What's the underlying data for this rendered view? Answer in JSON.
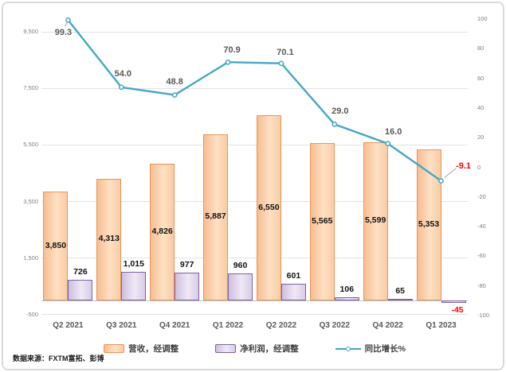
{
  "source_note": "数据来源：FXTM富拓、彭博",
  "colors": {
    "revenue_fill": "#FBD2AB",
    "revenue_border": "#E8945A",
    "profit_fill": "#DED3EB",
    "profit_border": "#7E62A1",
    "line": "#43A7C7",
    "negative_label": "#FF0000",
    "axis_text": "#808080",
    "label_text": "#595959",
    "gridline": "#E2E2E2"
  },
  "chart_data": {
    "type": "bar",
    "subtype": "combo-bar-line-dual-axis",
    "categories": [
      "Q2 2021",
      "Q3 2021",
      "Q4 2021",
      "Q1 2022",
      "Q2 2022",
      "Q3 2022",
      "Q4 2022",
      "Q1 2023"
    ],
    "series": [
      {
        "name": "营收，经调整",
        "type": "bar",
        "axis": "left",
        "values": [
          3850,
          4313,
          4826,
          5887,
          6550,
          5565,
          5599,
          5353
        ],
        "labels": [
          "3,850",
          "4,313",
          "4,826",
          "5,887",
          "6,550",
          "5,565",
          "5,599",
          "5,353"
        ]
      },
      {
        "name": "净利润，经调整",
        "type": "bar",
        "axis": "left",
        "values": [
          726,
          1015,
          977,
          960,
          601,
          106,
          65,
          -45
        ],
        "labels": [
          "726",
          "1,015",
          "977",
          "960",
          "601",
          "106",
          "65",
          "-45"
        ]
      },
      {
        "name": "同比增长%",
        "type": "line",
        "axis": "right",
        "values": [
          99.3,
          54.0,
          48.8,
          70.9,
          70.1,
          29.0,
          16.0,
          -9.1
        ],
        "labels": [
          "99.3",
          "54.0",
          "48.8",
          "70.9",
          "70.1",
          "29.0",
          "16.0",
          "-9.1"
        ]
      }
    ],
    "left_axis": {
      "range": [
        -500,
        9500
      ],
      "tick_values": [
        9500,
        7500,
        5500,
        3500,
        1500,
        -500
      ],
      "tick_labels": [
        "9,500",
        "7,500",
        "5,500",
        "3,500",
        "1,500",
        "-500"
      ]
    },
    "right_axis": {
      "range": [
        -100,
        100
      ],
      "tick_values": [
        100,
        80,
        60,
        40,
        20,
        0,
        -20,
        -40,
        -60,
        -80,
        -100
      ],
      "tick_labels": [
        "100",
        "80",
        "60",
        "40",
        "20",
        "0",
        "-20",
        "-40",
        "-60",
        "-80",
        "-100"
      ]
    },
    "grid": true,
    "legend_position": "bottom",
    "title": ""
  }
}
